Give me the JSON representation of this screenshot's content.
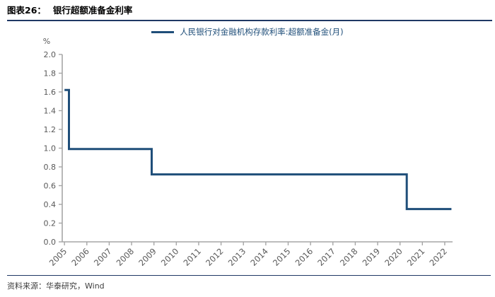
{
  "header": {
    "label": "图表26：",
    "title": "银行超额准备金利率"
  },
  "legend": {
    "label": "人民银行对金融机构存款利率:超额准备金(月)",
    "color": "#1F4E79"
  },
  "footer": {
    "text": "资料来源：华泰研究，Wind"
  },
  "chart_data": {
    "type": "line",
    "title": "银行超额准备金利率",
    "legend_entries": [
      "人民银行对金融机构存款利率:超额准备金(月)"
    ],
    "legend_position": "top-center",
    "unit_label": "%",
    "line_color": "#1F4E79",
    "axis_color": "#A6A6A6",
    "tick_label_color": "#595959",
    "grid": false,
    "ylim": [
      0.0,
      2.0
    ],
    "xlim": [
      2004.9,
      2022.35
    ],
    "y_ticks": [
      "0.0",
      "0.2",
      "0.4",
      "0.6",
      "0.8",
      "1.0",
      "1.2",
      "1.4",
      "1.6",
      "1.8",
      "2.0"
    ],
    "x_ticks": [
      "2005",
      "2006",
      "2007",
      "2008",
      "2009",
      "2010",
      "2011",
      "2012",
      "2013",
      "2014",
      "2015",
      "2016",
      "2017",
      "2018",
      "2019",
      "2020",
      "2021",
      "2022"
    ],
    "series": [
      {
        "name": "人民银行对金融机构存款利率:超额准备金(月)",
        "step": true,
        "segments": [
          {
            "from_x": 2005.0,
            "value": 1.62
          },
          {
            "from_x": 2005.2,
            "value": 0.99
          },
          {
            "from_x": 2008.9,
            "value": 0.72
          },
          {
            "from_x": 2020.3,
            "value": 0.35
          }
        ],
        "end_x": 2022.3
      }
    ]
  }
}
